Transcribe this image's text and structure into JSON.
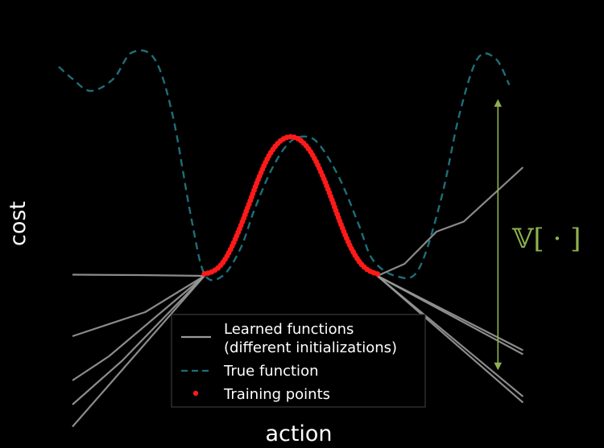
{
  "chart_data": {
    "type": "line",
    "title": "",
    "xlabel": "action",
    "ylabel": "cost",
    "xlim": [
      0,
      10
    ],
    "ylim": [
      -4,
      6
    ],
    "grid": false,
    "legend_position": "bottom-center",
    "legend": [
      {
        "label": "Learned functions",
        "label_line2": "(different initializations)",
        "style": "solid",
        "color": "#9a9a9a"
      },
      {
        "label": "True function",
        "style": "dashed",
        "color": "#1f6e78"
      },
      {
        "label": "Training points",
        "style": "dot",
        "color": "#ff1a1a"
      }
    ],
    "annotation": {
      "label": "𝕍[ · ]",
      "color": "#8fb04f",
      "x": 9.35,
      "y_top": 4.3,
      "y_bottom": -2.25
    },
    "true_function": {
      "name": "True function",
      "color": "#1f6e78",
      "x": [
        -0.3,
        0.0,
        0.4,
        0.9,
        1.3,
        1.8,
        2.2,
        2.6,
        2.9,
        3.3,
        3.7,
        4.0,
        4.4,
        4.8,
        5.2,
        5.5,
        5.9,
        6.3,
        6.6,
        7.1,
        7.6,
        8.1,
        8.5,
        8.9,
        9.3,
        9.6
      ],
      "y": [
        5.2,
        4.9,
        4.6,
        4.9,
        5.55,
        5.4,
        4.0,
        1.5,
        0.05,
        0.0,
        0.7,
        1.65,
        2.7,
        3.35,
        3.45,
        3.15,
        2.35,
        1.25,
        0.4,
        0.0,
        0.15,
        1.9,
        4.0,
        5.4,
        5.4,
        4.75
      ]
    },
    "training_points": {
      "name": "Training points",
      "color": "#ff1a1a",
      "x": [
        2.9,
        3.1,
        3.3,
        3.5,
        3.7,
        3.9,
        4.1,
        4.3,
        4.5,
        4.7,
        4.9,
        5.1,
        5.3,
        5.5,
        5.7,
        5.9,
        6.1,
        6.3,
        6.5,
        6.7
      ],
      "y": [
        0.05,
        0.12,
        0.32,
        0.72,
        1.25,
        1.85,
        2.45,
        2.95,
        3.28,
        3.44,
        3.44,
        3.28,
        2.96,
        2.48,
        1.9,
        1.28,
        0.75,
        0.36,
        0.14,
        0.05
      ]
    },
    "learned_functions": [
      {
        "x": [
          0.0,
          1.5,
          2.9
        ],
        "y": [
          0.03,
          0.02,
          0.0
        ]
      },
      {
        "x": [
          0.0,
          1.6,
          2.9
        ],
        "y": [
          -1.5,
          -0.9,
          0.0
        ]
      },
      {
        "x": [
          0.0,
          0.8,
          2.9
        ],
        "y": [
          -2.6,
          -2.0,
          0.0
        ]
      },
      {
        "x": [
          0.0,
          1.1,
          2.9
        ],
        "y": [
          -3.2,
          -2.1,
          0.0
        ]
      },
      {
        "x": [
          0.0,
          2.9
        ],
        "y": [
          -3.75,
          0.0
        ]
      },
      {
        "x": [
          6.7,
          7.3,
          8.0,
          8.6,
          9.9
        ],
        "y": [
          0.0,
          0.3,
          1.1,
          1.35,
          2.7
        ]
      },
      {
        "x": [
          6.7,
          9.9
        ],
        "y": [
          0.0,
          -1.85
        ]
      },
      {
        "x": [
          6.7,
          9.9
        ],
        "y": [
          -0.0,
          -1.95
        ]
      },
      {
        "x": [
          6.7,
          9.9
        ],
        "y": [
          0.0,
          -3.0
        ]
      },
      {
        "x": [
          6.7,
          9.9
        ],
        "y": [
          0.0,
          -3.15
        ]
      }
    ]
  }
}
